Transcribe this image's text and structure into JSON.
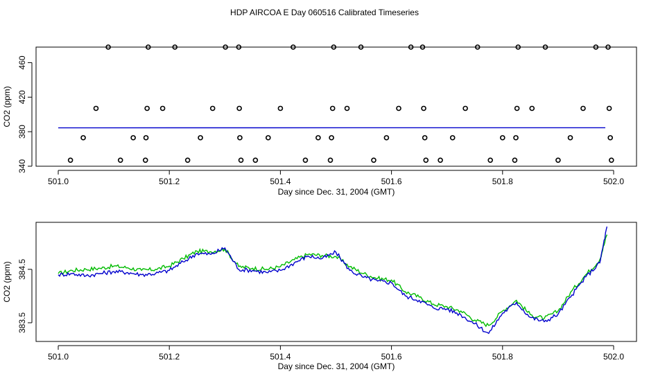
{
  "page": {
    "title": "HDP AIRCOA E  Day 060516  Calibrated Timeseries"
  },
  "chart_data": [
    {
      "type": "scatter",
      "name": "top-panel",
      "xlabel": "Day since Dec. 31, 2004 (GMT)",
      "ylabel": "CO2 (ppm)",
      "xlim": [
        501.0,
        502.0
      ],
      "ylim": [
        340,
        478
      ],
      "xticks": [
        "501.0",
        "501.2",
        "501.4",
        "501.6",
        "501.8",
        "502.0"
      ],
      "yticks": [
        "340",
        "380",
        "420",
        "460"
      ],
      "grid": false,
      "series": [
        {
          "color": "#000000",
          "marker": "circle",
          "points": [
            [
              501.022,
              347
            ],
            [
              501.045,
              373
            ],
            [
              501.068,
              407
            ],
            [
              501.09,
              478
            ],
            [
              501.112,
              347
            ],
            [
              501.135,
              373
            ],
            [
              501.157,
              347
            ],
            [
              501.158,
              373
            ],
            [
              501.16,
              407
            ],
            [
              501.162,
              478
            ],
            [
              501.188,
              407
            ],
            [
              501.21,
              478
            ],
            [
              501.233,
              347
            ],
            [
              501.256,
              373
            ],
            [
              501.278,
              407
            ],
            [
              501.301,
              478
            ],
            [
              501.325,
              478
            ],
            [
              501.326,
              407
            ],
            [
              501.327,
              373
            ],
            [
              501.329,
              347
            ],
            [
              501.355,
              347
            ],
            [
              501.378,
              373
            ],
            [
              501.4,
              407
            ],
            [
              501.423,
              478
            ],
            [
              501.445,
              347
            ],
            [
              501.468,
              373
            ],
            [
              501.49,
              347
            ],
            [
              501.492,
              373
            ],
            [
              501.494,
              407
            ],
            [
              501.496,
              478
            ],
            [
              501.52,
              407
            ],
            [
              501.545,
              478
            ],
            [
              501.568,
              347
            ],
            [
              501.591,
              373
            ],
            [
              501.613,
              407
            ],
            [
              501.635,
              478
            ],
            [
              501.656,
              478
            ],
            [
              501.658,
              407
            ],
            [
              501.66,
              373
            ],
            [
              501.662,
              347
            ],
            [
              501.688,
              347
            ],
            [
              501.71,
              373
            ],
            [
              501.733,
              407
            ],
            [
              501.755,
              478
            ],
            [
              501.778,
              347
            ],
            [
              501.8,
              373
            ],
            [
              501.822,
              347
            ],
            [
              501.824,
              373
            ],
            [
              501.826,
              407
            ],
            [
              501.828,
              478
            ],
            [
              501.853,
              407
            ],
            [
              501.877,
              478
            ],
            [
              501.9,
              347
            ],
            [
              501.922,
              373
            ],
            [
              501.945,
              407
            ],
            [
              501.968,
              478
            ],
            [
              501.99,
              478
            ],
            [
              501.992,
              407
            ],
            [
              501.994,
              373
            ],
            [
              501.996,
              347
            ]
          ]
        },
        {
          "color": "#0000cc",
          "type": "line",
          "points": [
            [
              501.0,
              384.5
            ],
            [
              501.985,
              384.6
            ]
          ]
        }
      ]
    },
    {
      "type": "line",
      "name": "bottom-panel",
      "xlabel": "Day since Dec. 31, 2004 (GMT)",
      "ylabel": "CO2 (ppm)",
      "xlim": [
        501.0,
        502.0
      ],
      "ylim": [
        383.15,
        385.38
      ],
      "xticks": [
        "501.0",
        "501.2",
        "501.4",
        "501.6",
        "501.8",
        "502.0"
      ],
      "yticks": [
        "383.5",
        "384.5"
      ],
      "grid": false,
      "series": [
        {
          "color": "#00bb00",
          "x": [
            501.0,
            501.025,
            501.05,
            501.075,
            501.1,
            501.125,
            501.15,
            501.175,
            501.2,
            501.225,
            501.25,
            501.275,
            501.3,
            501.325,
            501.35,
            501.375,
            501.4,
            501.425,
            501.45,
            501.475,
            501.5,
            501.525,
            501.55,
            501.575,
            501.6,
            501.625,
            501.65,
            501.675,
            501.7,
            501.725,
            501.75,
            501.775,
            501.8,
            501.825,
            501.85,
            501.875,
            501.9,
            501.925,
            501.95,
            501.975,
            501.988
          ],
          "y": [
            384.42,
            384.48,
            384.5,
            384.52,
            384.56,
            384.53,
            384.48,
            384.5,
            384.56,
            384.7,
            384.84,
            384.83,
            384.88,
            384.55,
            384.52,
            384.5,
            384.55,
            384.68,
            384.78,
            384.76,
            384.74,
            384.55,
            384.42,
            384.33,
            384.3,
            384.08,
            383.98,
            383.85,
            383.8,
            383.72,
            383.55,
            383.45,
            383.72,
            383.92,
            383.65,
            383.58,
            383.72,
            384.1,
            384.4,
            384.68,
            385.15
          ]
        },
        {
          "color": "#0000cc",
          "x": [
            501.0,
            501.025,
            501.05,
            501.075,
            501.1,
            501.125,
            501.15,
            501.175,
            501.2,
            501.225,
            501.25,
            501.275,
            501.3,
            501.325,
            501.35,
            501.375,
            501.4,
            501.425,
            501.45,
            501.475,
            501.5,
            501.525,
            501.55,
            501.575,
            501.6,
            501.625,
            501.65,
            501.675,
            501.7,
            501.725,
            501.75,
            501.775,
            501.8,
            501.825,
            501.85,
            501.875,
            501.9,
            501.925,
            501.95,
            501.975,
            501.988
          ],
          "y": [
            384.4,
            384.42,
            384.38,
            384.42,
            384.46,
            384.44,
            384.4,
            384.42,
            384.48,
            384.64,
            384.8,
            384.78,
            384.9,
            384.5,
            384.48,
            384.44,
            384.48,
            384.62,
            384.75,
            384.7,
            384.82,
            384.48,
            384.35,
            384.28,
            384.25,
            384.0,
            383.92,
            383.78,
            383.76,
            383.65,
            383.48,
            383.3,
            383.68,
            383.88,
            383.6,
            383.52,
            383.66,
            384.02,
            384.36,
            384.62,
            385.3
          ]
        }
      ]
    }
  ]
}
